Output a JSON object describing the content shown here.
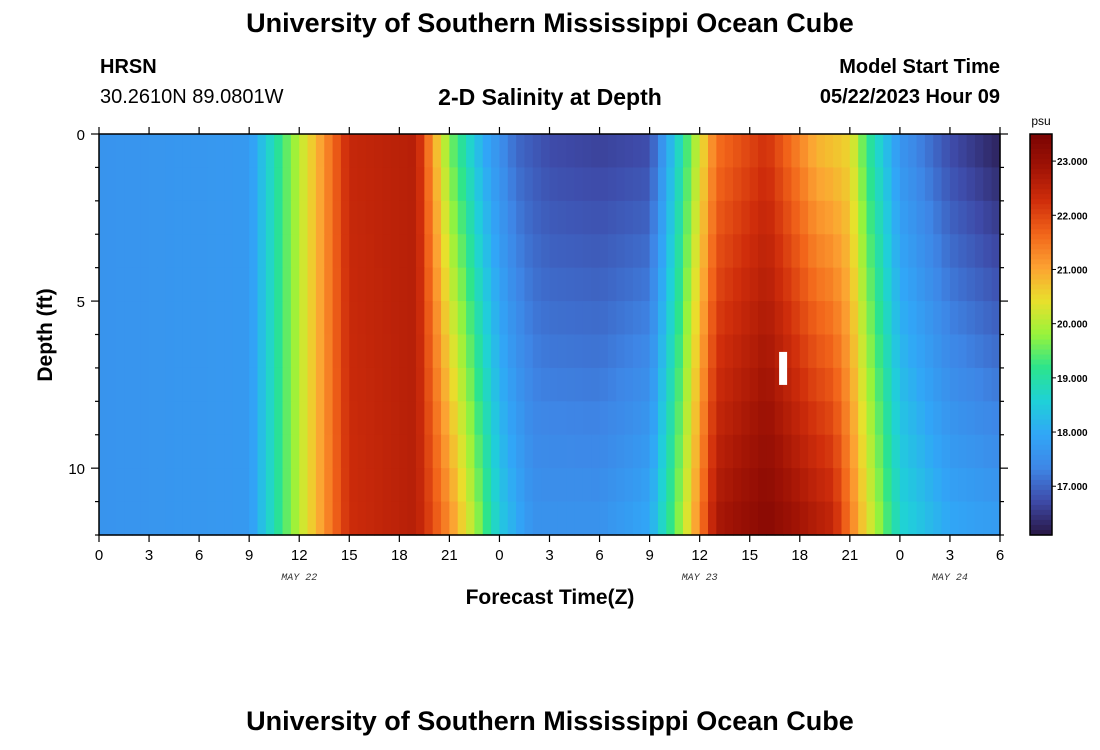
{
  "header": {
    "title": "University of Southern Mississippi Ocean Cube",
    "station": "HRSN",
    "coordinates": "30.2610N  89.0801W",
    "plot_title": "2-D Salinity at Depth",
    "start_label": "Model Start Time",
    "start_value": "05/22/2023 Hour 09",
    "bottom_title": "University of Southern Mississippi Ocean Cube"
  },
  "colors": {
    "scale": [
      "#281643",
      "#3e4aa8",
      "#3e86e6",
      "#31a6f7",
      "#1fd1d8",
      "#2be48d",
      "#98f33b",
      "#e9e02c",
      "#fca232",
      "#f2651a",
      "#cf2d0b",
      "#a01305",
      "#7a0403"
    ]
  },
  "chart_data": {
    "type": "heatmap",
    "xlabel": "Forecast Time(Z)",
    "ylabel": "Depth (ft)",
    "x_tick_labels": [
      "0",
      "3",
      "6",
      "9",
      "12",
      "15",
      "18",
      "21",
      "0",
      "3",
      "6",
      "9",
      "12",
      "15",
      "18",
      "21",
      "0",
      "3",
      "6"
    ],
    "x_range_hours": [
      0,
      54
    ],
    "date_labels": [
      {
        "hour": 12,
        "text": "MAY 22"
      },
      {
        "hour": 36,
        "text": "MAY 23"
      },
      {
        "hour": 51,
        "text": "MAY 24"
      }
    ],
    "y_tick_labels": [
      "0",
      "5",
      "10"
    ],
    "y_range_ft": [
      0,
      12
    ],
    "colorbar": {
      "unit": "psu",
      "range": [
        16.1,
        23.5
      ],
      "tick_values": [
        23,
        22,
        21,
        20,
        19,
        18,
        17
      ],
      "tick_labels": [
        "23.000",
        "22.000",
        "21.000",
        "20.000",
        "19.000",
        "18.000",
        "17.000"
      ]
    },
    "marker": {
      "hour": 41,
      "depth_ft": 7
    },
    "surface_salinity_psu": [
      [
        0,
        17.6
      ],
      [
        9,
        17.7
      ],
      [
        11,
        19.3
      ],
      [
        13,
        20.8
      ],
      [
        15,
        22.4
      ],
      [
        19,
        22.6
      ],
      [
        21,
        19.6
      ],
      [
        23,
        18.0
      ],
      [
        25,
        17.0
      ],
      [
        27,
        16.7
      ],
      [
        30,
        16.6
      ],
      [
        33,
        16.7
      ],
      [
        35,
        19.0
      ],
      [
        37,
        21.5
      ],
      [
        40,
        22.2
      ],
      [
        43,
        20.8
      ],
      [
        45,
        20.5
      ],
      [
        46,
        19.2
      ],
      [
        48,
        17.6
      ],
      [
        51,
        16.7
      ],
      [
        54,
        16.2
      ]
    ],
    "bottom_salinity_psu": [
      [
        0,
        17.6
      ],
      [
        9,
        17.7
      ],
      [
        11,
        19.3
      ],
      [
        13,
        20.8
      ],
      [
        15,
        22.3
      ],
      [
        19,
        22.6
      ],
      [
        21,
        21.3
      ],
      [
        22.5,
        20.0
      ],
      [
        24,
        18.5
      ],
      [
        26,
        17.6
      ],
      [
        30,
        17.6
      ],
      [
        33,
        18.0
      ],
      [
        35,
        20.0
      ],
      [
        37,
        22.8
      ],
      [
        40,
        23.3
      ],
      [
        44,
        22.5
      ],
      [
        46,
        20.5
      ],
      [
        48,
        18.7
      ],
      [
        51,
        18.0
      ],
      [
        54,
        17.8
      ]
    ]
  }
}
